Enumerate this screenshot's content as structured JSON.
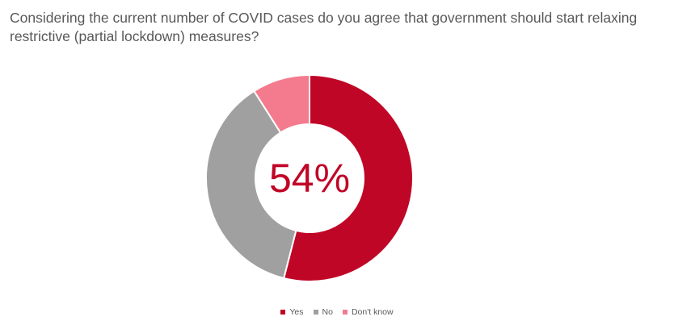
{
  "chart_data": {
    "type": "pie",
    "title": "Considering the current number of COVID cases do you agree that government should start relaxing restrictive (partial lockdown) measures?",
    "categories": [
      "Yes",
      "No",
      "Don't know"
    ],
    "values": [
      54,
      37,
      9
    ],
    "colors": [
      "#C00627",
      "#A0A0A0",
      "#F47A8D"
    ],
    "center_label": "54%",
    "legend_position": "bottom"
  }
}
